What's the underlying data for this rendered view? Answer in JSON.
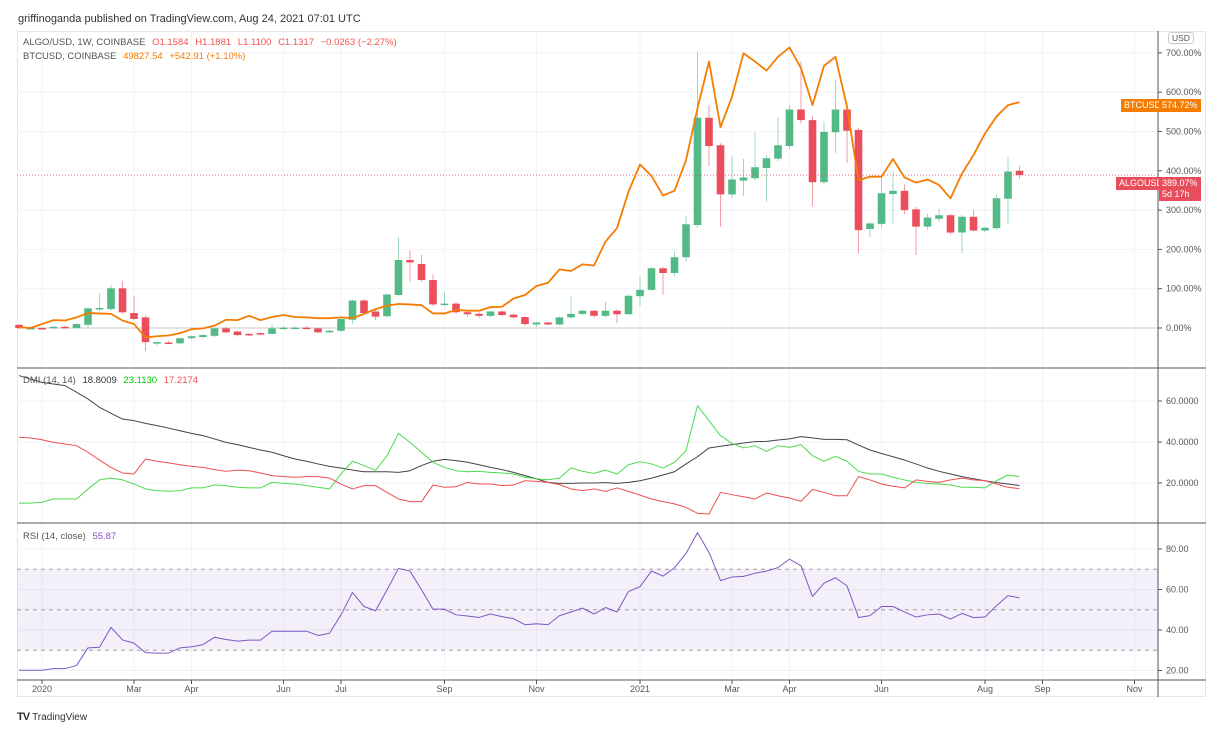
{
  "header": {
    "published": "griffinoganda published on TradingView.com, Aug 24, 2021 07:01 UTC"
  },
  "legend": {
    "main_symbol": "ALGO/USD, 1W, COINBASE",
    "open": "O1.1584",
    "high": "H1.1881",
    "low": "L1.1100",
    "close": "C1.1317",
    "change": "−0.0263 (−2.27%)",
    "compare_symbol": "BTCUSD, COINBASE",
    "compare_price": "49827.54",
    "compare_change": "+542.91 (+1.10%)",
    "dmi_title": "DMI (14, 14)",
    "dmi_adx": "18.8009",
    "dmi_plus": "23.1130",
    "dmi_minus": "17.2174",
    "rsi_title": "RSI (14, close)",
    "rsi_value": "55.87"
  },
  "axis": {
    "currency_button": "USD",
    "price_ticks": [
      "0.00%",
      "100.00%",
      "200.00%",
      "300.00%",
      "400.00%",
      "500.00%",
      "600.00%",
      "700.00%"
    ],
    "dmi_ticks": [
      "20.0000",
      "40.0000",
      "60.0000"
    ],
    "rsi_ticks": [
      "20.00",
      "40.00",
      "60.00",
      "80.00"
    ],
    "btc_badge": {
      "label": "BTCUSD",
      "value": "574.72%"
    },
    "algo_badge": {
      "label": "ALGOUSD",
      "value": "389.07%",
      "countdown": "5d 17h"
    }
  },
  "logo": {
    "text": "TradingView"
  },
  "colors": {
    "up": "#53b987",
    "down": "#eb4d5c",
    "btc": "#f57c00",
    "adx": "#444444",
    "plus_di": "#4cdb4c",
    "minus_di": "#ef4f4f",
    "rsi": "#7e57c2",
    "grid": "#f0f3fa"
  },
  "chart_data": {
    "type": "candlestick",
    "interval": "1W",
    "first_week": "2019-12-23",
    "x_ticks": [
      {
        "label": "2020",
        "date": "2020-01-06"
      },
      {
        "label": "Mar",
        "date": "2020-03-02"
      },
      {
        "label": "Apr",
        "date": "2020-04-06"
      },
      {
        "label": "Jun",
        "date": "2020-06-01"
      },
      {
        "label": "Jul",
        "date": "2020-07-06"
      },
      {
        "label": "Sep",
        "date": "2020-09-07"
      },
      {
        "label": "Nov",
        "date": "2020-11-02"
      },
      {
        "label": "2021",
        "date": "2021-01-04"
      },
      {
        "label": "Mar",
        "date": "2021-03-01"
      },
      {
        "label": "Apr",
        "date": "2021-04-05"
      },
      {
        "label": "Jun",
        "date": "2021-05-31"
      },
      {
        "label": "Aug",
        "date": "2021-08-02"
      },
      {
        "label": "Sep",
        "date": "2021-09-06"
      },
      {
        "label": "Nov",
        "date": "2021-11-01"
      }
    ],
    "price_pane": {
      "unit": "% change",
      "ylim": [
        -80,
        720
      ],
      "algo_ohlc": [
        [
          8,
          10,
          -2,
          0
        ],
        [
          0,
          2,
          -3,
          0
        ],
        [
          0,
          2,
          -4,
          -2
        ],
        [
          0,
          5,
          -2,
          3
        ],
        [
          3,
          6,
          -1,
          0
        ],
        [
          0,
          12,
          -2,
          10
        ],
        [
          8,
          52,
          2,
          50
        ],
        [
          48,
          88,
          42,
          51
        ],
        [
          48,
          109,
          44,
          101
        ],
        [
          101,
          120,
          36,
          40
        ],
        [
          38,
          82,
          20,
          23
        ],
        [
          27,
          32,
          -58,
          -36
        ],
        [
          -37,
          -34,
          -45,
          -36
        ],
        [
          -37,
          -33,
          -41,
          -39
        ],
        [
          -39,
          -24,
          -42,
          -26
        ],
        [
          -26,
          -19,
          -29,
          -21
        ],
        [
          -23,
          -15,
          -26,
          -18
        ],
        [
          -20,
          1,
          -23,
          -1
        ],
        [
          -1,
          3,
          -13,
          -11
        ],
        [
          -9,
          -6,
          -22,
          -18
        ],
        [
          -15,
          -12,
          -20,
          -16
        ],
        [
          -13,
          -11,
          -18,
          -15
        ],
        [
          -15,
          10,
          -17,
          -1
        ],
        [
          0,
          4,
          -3,
          1
        ],
        [
          0,
          4,
          -2,
          1
        ],
        [
          1,
          4,
          -3,
          0
        ],
        [
          -1,
          2,
          -14,
          -11
        ],
        [
          -11,
          -4,
          -13,
          -7
        ],
        [
          -7,
          26,
          -10,
          23
        ],
        [
          21,
          72,
          10,
          70
        ],
        [
          70,
          73,
          33,
          38
        ],
        [
          42,
          50,
          20,
          29
        ],
        [
          30,
          88,
          27,
          85
        ],
        [
          84,
          231,
          80,
          173
        ],
        [
          173,
          198,
          118,
          167
        ],
        [
          163,
          186,
          118,
          122
        ],
        [
          122,
          137,
          55,
          60
        ],
        [
          59,
          90,
          55,
          62
        ],
        [
          62,
          66,
          36,
          40
        ],
        [
          40,
          44,
          28,
          35
        ],
        [
          36,
          40,
          26,
          31
        ],
        [
          31,
          44,
          28,
          42
        ],
        [
          42,
          45,
          30,
          33
        ],
        [
          34,
          36,
          24,
          27
        ],
        [
          28,
          30,
          5,
          10
        ],
        [
          9,
          16,
          3,
          14
        ],
        [
          14,
          16,
          6,
          9
        ],
        [
          9,
          30,
          7,
          27
        ],
        [
          27,
          81,
          24,
          36
        ],
        [
          36,
          47,
          33,
          44
        ],
        [
          44,
          46,
          26,
          31
        ],
        [
          31,
          67,
          28,
          44
        ],
        [
          44,
          47,
          12,
          35
        ],
        [
          35,
          86,
          33,
          82
        ],
        [
          81,
          129,
          56,
          97
        ],
        [
          97,
          155,
          94,
          152
        ],
        [
          152,
          156,
          84,
          140
        ],
        [
          140,
          195,
          130,
          180
        ],
        [
          180,
          286,
          170,
          264
        ],
        [
          262,
          703,
          255,
          535
        ],
        [
          535,
          567,
          412,
          463
        ],
        [
          465,
          470,
          258,
          340
        ],
        [
          340,
          437,
          330,
          378
        ],
        [
          375,
          430,
          336,
          383
        ],
        [
          381,
          498,
          375,
          409
        ],
        [
          407,
          440,
          321,
          432
        ],
        [
          431,
          536,
          425,
          465
        ],
        [
          463,
          567,
          455,
          556
        ],
        [
          556,
          678,
          520,
          529
        ],
        [
          529,
          540,
          309,
          371
        ],
        [
          371,
          525,
          365,
          499
        ],
        [
          498,
          631,
          445,
          556
        ],
        [
          556,
          573,
          420,
          502
        ],
        [
          504,
          510,
          190,
          249
        ],
        [
          252,
          270,
          232,
          266
        ],
        [
          265,
          385,
          255,
          343
        ],
        [
          341,
          398,
          266,
          349
        ],
        [
          349,
          365,
          290,
          300
        ],
        [
          302,
          308,
          186,
          258
        ],
        [
          258,
          290,
          250,
          281
        ],
        [
          278,
          304,
          270,
          287
        ],
        [
          287,
          290,
          238,
          243
        ],
        [
          243,
          288,
          190,
          283
        ],
        [
          283,
          300,
          245,
          248
        ],
        [
          248,
          258,
          244,
          255
        ],
        [
          254,
          340,
          250,
          330
        ],
        [
          329,
          437,
          265,
          398
        ],
        [
          400,
          412,
          380,
          389.07
        ]
      ],
      "btc_line": [
        2,
        0,
        10,
        20,
        19,
        27,
        38,
        37,
        36,
        19,
        10,
        -24,
        -21,
        -19,
        -13,
        -3,
        -1,
        6,
        21,
        20,
        31,
        20,
        28,
        33,
        28,
        27,
        25,
        25,
        27,
        25,
        36,
        48,
        57,
        61,
        60,
        58,
        37,
        37,
        46,
        44,
        44,
        53,
        54,
        75,
        84,
        107,
        115,
        149,
        145,
        162,
        159,
        220,
        254,
        347,
        416,
        387,
        337,
        349,
        427,
        559,
        678,
        511,
        588,
        699,
        678,
        655,
        690,
        714,
        661,
        567,
        667,
        690,
        563,
        376,
        385,
        385,
        430,
        383,
        370,
        378,
        364,
        330,
        393,
        440,
        495,
        538,
        567,
        574.72
      ]
    },
    "dmi_pane": {
      "ylim": [
        0,
        76
      ],
      "adx": [
        72.4,
        70.7,
        69.1,
        68.3,
        67.5,
        64.3,
        61.0,
        56.9,
        54.0,
        51.2,
        50.4,
        49.1,
        48.0,
        46.8,
        45.5,
        44.2,
        43.1,
        41.5,
        39.8,
        38.7,
        37.4,
        36.1,
        35.0,
        33.3,
        31.7,
        30.6,
        29.3,
        28.1,
        27.3,
        26.3,
        25.5,
        25.5,
        25.5,
        25.2,
        26.0,
        28.5,
        30.6,
        31.5,
        30.9,
        30.1,
        28.9,
        27.6,
        26.5,
        25.2,
        23.6,
        22.0,
        20.3,
        19.8,
        19.8,
        20.0,
        20.0,
        20.2,
        19.8,
        20.3,
        21.1,
        22.4,
        23.9,
        25.5,
        29.3,
        32.8,
        37.1,
        37.9,
        38.7,
        39.5,
        40.2,
        40.3,
        41.0,
        41.5,
        42.6,
        42.0,
        41.3,
        41.3,
        41.1,
        38.5,
        36.1,
        34.4,
        32.8,
        31.2,
        29.3,
        27.3,
        25.7,
        24.4,
        23.1,
        22.1,
        21.1,
        20.2,
        19.5,
        18.8
      ],
      "plus_di": [
        10.2,
        10.2,
        10.6,
        12.2,
        12.2,
        12.2,
        17.1,
        21.5,
        22.4,
        21.5,
        19.5,
        17.1,
        16.3,
        16.0,
        16.3,
        17.6,
        17.6,
        19.1,
        18.7,
        17.9,
        17.6,
        17.6,
        20.3,
        19.8,
        19.5,
        18.7,
        17.9,
        17.1,
        24.4,
        30.6,
        28.5,
        26.2,
        33.3,
        44.2,
        39.8,
        35.0,
        30.1,
        27.6,
        26.0,
        25.5,
        25.7,
        25.2,
        24.9,
        24.4,
        22.8,
        22.0,
        21.6,
        22.4,
        27.3,
        25.7,
        24.7,
        26.3,
        24.4,
        28.9,
        30.4,
        29.3,
        27.3,
        30.1,
        35.8,
        57.7,
        50.4,
        43.1,
        39.3,
        37.1,
        38.2,
        35.4,
        38.2,
        37.4,
        38.7,
        33.3,
        30.6,
        33.0,
        30.6,
        25.7,
        24.4,
        24.4,
        22.8,
        21.5,
        20.3,
        19.8,
        19.5,
        19.0,
        17.9,
        17.9,
        17.6,
        21.1,
        23.9,
        23.1
      ],
      "minus_di": [
        42.3,
        42.0,
        41.1,
        39.8,
        39.0,
        38.2,
        35.0,
        31.2,
        27.6,
        24.9,
        24.4,
        31.7,
        30.6,
        29.8,
        28.9,
        28.1,
        27.6,
        26.5,
        25.7,
        26.3,
        26.0,
        24.9,
        23.6,
        23.1,
        22.8,
        23.1,
        23.1,
        22.4,
        19.5,
        17.1,
        18.7,
        18.7,
        15.4,
        12.2,
        10.9,
        10.9,
        19.0,
        17.9,
        18.2,
        20.3,
        19.5,
        19.5,
        18.7,
        19.0,
        21.1,
        20.8,
        20.3,
        19.2,
        17.1,
        16.3,
        17.1,
        15.9,
        17.6,
        15.9,
        14.1,
        12.2,
        10.9,
        9.8,
        8.1,
        5.2,
        4.9,
        15.4,
        14.3,
        13.3,
        12.2,
        15.1,
        13.8,
        12.7,
        11.1,
        16.9,
        15.4,
        13.8,
        13.8,
        23.1,
        21.5,
        19.5,
        18.4,
        17.6,
        21.5,
        20.8,
        20.3,
        21.5,
        22.4,
        21.5,
        21.1,
        19.5,
        17.9,
        17.2
      ]
    },
    "rsi_pane": {
      "ylim": [
        15,
        93
      ],
      "band": [
        30,
        70
      ],
      "midline": 50,
      "rsi": [
        20.1,
        20.1,
        20.1,
        20.9,
        20.9,
        22.5,
        31.2,
        31.5,
        41.3,
        35.1,
        33.5,
        28.8,
        28.6,
        28.6,
        31.2,
        31.7,
        32.8,
        36.4,
        35.3,
        34.5,
        35.0,
        35.0,
        39.4,
        39.4,
        39.4,
        39.4,
        37.3,
        38.4,
        47.5,
        58.5,
        51.6,
        49.5,
        59.8,
        70.4,
        69.1,
        59.8,
        50.3,
        50.3,
        47.5,
        46.9,
        46.2,
        47.9,
        46.6,
        45.6,
        42.6,
        43.1,
        42.6,
        47.1,
        48.9,
        50.8,
        47.9,
        51.1,
        48.9,
        59.0,
        61.4,
        69.1,
        66.6,
        70.8,
        77.8,
        88.1,
        78.3,
        64.4,
        66.2,
        66.5,
        68.0,
        69.1,
        70.8,
        75.0,
        71.7,
        56.5,
        63.1,
        65.8,
        61.8,
        46.2,
        47.1,
        51.6,
        51.6,
        48.9,
        46.4,
        47.5,
        47.9,
        45.4,
        48.2,
        46.1,
        46.4,
        52.0,
        57.0,
        55.87
      ]
    }
  }
}
